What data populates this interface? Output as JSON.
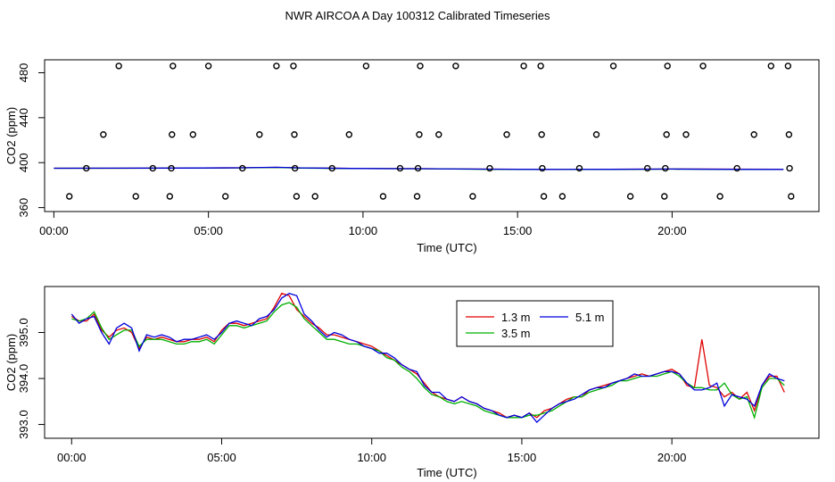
{
  "title": "NWR AIRCOA A  Day 100312  Calibrated Timeseries",
  "colors": {
    "h13": "#e00000",
    "h35": "#00b000",
    "h51": "#0000dd",
    "axis": "#000000"
  },
  "chart_data": [
    {
      "type": "scatter+line",
      "xlabel": "Time (UTC)",
      "ylabel": "CO2 (ppm)",
      "xlim": [
        -0.3,
        24.75
      ],
      "ylim": [
        356.5,
        491.5
      ],
      "xticks": [
        0,
        5,
        10,
        15,
        20
      ],
      "xtick_labels": [
        "00:00",
        "05:00",
        "10:00",
        "15:00",
        "20:00"
      ],
      "yticks": [
        360,
        400,
        440,
        480
      ],
      "ytick_labels": [
        "360",
        "400",
        "440",
        "480"
      ],
      "grid": false,
      "calibration_points": [
        {
          "x": 0.5,
          "y": 370
        },
        {
          "x": 1.05,
          "y": 395
        },
        {
          "x": 1.6,
          "y": 425
        },
        {
          "x": 2.1,
          "y": 486
        },
        {
          "x": 2.65,
          "y": 370
        },
        {
          "x": 3.2,
          "y": 395
        },
        {
          "x": 3.75,
          "y": 370
        },
        {
          "x": 3.8,
          "y": 395
        },
        {
          "x": 3.82,
          "y": 425
        },
        {
          "x": 3.85,
          "y": 486
        },
        {
          "x": 4.5,
          "y": 425
        },
        {
          "x": 5.0,
          "y": 486
        },
        {
          "x": 5.55,
          "y": 370
        },
        {
          "x": 6.1,
          "y": 395
        },
        {
          "x": 6.65,
          "y": 425
        },
        {
          "x": 7.2,
          "y": 486
        },
        {
          "x": 7.75,
          "y": 486
        },
        {
          "x": 7.78,
          "y": 425
        },
        {
          "x": 7.8,
          "y": 395
        },
        {
          "x": 7.85,
          "y": 370
        },
        {
          "x": 8.45,
          "y": 370
        },
        {
          "x": 9.0,
          "y": 395
        },
        {
          "x": 9.55,
          "y": 425
        },
        {
          "x": 10.1,
          "y": 486
        },
        {
          "x": 10.65,
          "y": 370
        },
        {
          "x": 11.2,
          "y": 395
        },
        {
          "x": 11.75,
          "y": 370
        },
        {
          "x": 11.78,
          "y": 395
        },
        {
          "x": 11.82,
          "y": 425
        },
        {
          "x": 11.85,
          "y": 486
        },
        {
          "x": 12.45,
          "y": 425
        },
        {
          "x": 13.0,
          "y": 486
        },
        {
          "x": 13.55,
          "y": 370
        },
        {
          "x": 14.1,
          "y": 395
        },
        {
          "x": 14.65,
          "y": 425
        },
        {
          "x": 15.2,
          "y": 486
        },
        {
          "x": 15.75,
          "y": 486
        },
        {
          "x": 15.78,
          "y": 425
        },
        {
          "x": 15.8,
          "y": 395
        },
        {
          "x": 15.85,
          "y": 370
        },
        {
          "x": 16.45,
          "y": 370
        },
        {
          "x": 17.0,
          "y": 395
        },
        {
          "x": 17.55,
          "y": 425
        },
        {
          "x": 18.1,
          "y": 486
        },
        {
          "x": 18.65,
          "y": 370
        },
        {
          "x": 19.2,
          "y": 395
        },
        {
          "x": 19.75,
          "y": 370
        },
        {
          "x": 19.78,
          "y": 395
        },
        {
          "x": 19.82,
          "y": 425
        },
        {
          "x": 19.85,
          "y": 486
        },
        {
          "x": 20.45,
          "y": 425
        },
        {
          "x": 21.0,
          "y": 486
        },
        {
          "x": 21.55,
          "y": 370
        },
        {
          "x": 22.1,
          "y": 395
        },
        {
          "x": 22.65,
          "y": 425
        },
        {
          "x": 23.2,
          "y": 486
        },
        {
          "x": 23.75,
          "y": 486
        },
        {
          "x": 23.78,
          "y": 425
        },
        {
          "x": 23.8,
          "y": 395
        },
        {
          "x": 23.85,
          "y": 370
        }
      ],
      "series": [
        {
          "name": "",
          "color_key": "h13",
          "x": [
            0,
            2,
            4,
            6,
            7.2,
            8,
            10,
            12,
            14,
            16,
            18,
            20,
            22,
            23.6
          ],
          "values": [
            395,
            395,
            395.2,
            395.4,
            395.8,
            395.3,
            394.8,
            394.6,
            394.2,
            394.0,
            394.1,
            394.3,
            394.2,
            394.1
          ]
        },
        {
          "name": "",
          "color_key": "h35",
          "x": [
            0,
            2,
            4,
            6,
            7.2,
            8,
            10,
            12,
            14,
            16,
            18,
            20,
            22,
            23.6
          ],
          "values": [
            395,
            395,
            395.1,
            395.3,
            395.7,
            395.2,
            394.7,
            394.5,
            394.1,
            393.9,
            394.0,
            394.2,
            394.0,
            393.9
          ]
        },
        {
          "name": "",
          "color_key": "h51",
          "x": [
            0,
            2,
            4,
            6,
            7.2,
            8,
            10,
            12,
            14,
            16,
            18,
            20,
            22,
            23.6
          ],
          "values": [
            395,
            395.1,
            395.2,
            395.4,
            395.9,
            395.3,
            394.8,
            394.6,
            394.2,
            394.0,
            394.1,
            394.3,
            394.1,
            394.0
          ]
        }
      ]
    },
    {
      "type": "line",
      "xlabel": "Time (UTC)",
      "ylabel": "CO2 (ppm)",
      "xlim": [
        -0.9,
        24.9
      ],
      "ylim": [
        392.7,
        396.0
      ],
      "xticks": [
        0,
        5,
        10,
        15,
        20
      ],
      "xtick_labels": [
        "00:00",
        "05:00",
        "10:00",
        "15:00",
        "20:00"
      ],
      "yticks": [
        393.0,
        394.0,
        395.0
      ],
      "ytick_labels": [
        "393.0",
        "394.0",
        "395.0"
      ],
      "grid": false,
      "legend_position": "top-center",
      "series": [
        {
          "name": "1.3 m",
          "color_key": "h13",
          "x": [
            0.0,
            0.25,
            0.5,
            0.75,
            1.0,
            1.25,
            1.5,
            1.75,
            2.0,
            2.25,
            2.5,
            2.75,
            3.0,
            3.25,
            3.5,
            3.75,
            4.0,
            4.25,
            4.5,
            4.75,
            5.0,
            5.25,
            5.5,
            5.75,
            6.0,
            6.25,
            6.5,
            6.75,
            7.0,
            7.25,
            7.5,
            7.75,
            8.0,
            8.25,
            8.5,
            8.75,
            9.0,
            9.25,
            9.5,
            9.75,
            10.0,
            10.25,
            10.5,
            10.75,
            11.0,
            11.25,
            11.5,
            11.75,
            12.0,
            12.25,
            12.5,
            12.75,
            13.0,
            13.25,
            13.5,
            13.75,
            14.0,
            14.25,
            14.5,
            14.75,
            15.0,
            15.25,
            15.5,
            15.75,
            16.0,
            16.25,
            16.5,
            16.75,
            17.0,
            17.25,
            17.5,
            17.75,
            18.0,
            18.25,
            18.5,
            18.75,
            19.0,
            19.25,
            19.5,
            19.75,
            20.0,
            20.25,
            20.5,
            20.75,
            21.0,
            21.25,
            21.5,
            21.75,
            22.0,
            22.25,
            22.5,
            22.75,
            23.0,
            23.25,
            23.5,
            23.75
          ],
          "values": [
            395.35,
            395.25,
            395.25,
            395.4,
            395.05,
            394.9,
            395.05,
            395.1,
            395.0,
            394.65,
            394.9,
            394.85,
            394.9,
            394.85,
            394.8,
            394.8,
            394.85,
            394.85,
            394.9,
            394.8,
            395.05,
            395.2,
            395.2,
            395.15,
            395.2,
            395.25,
            395.3,
            395.55,
            395.85,
            395.8,
            395.5,
            395.35,
            395.2,
            395.1,
            394.95,
            394.95,
            394.9,
            394.85,
            394.8,
            394.75,
            394.7,
            394.6,
            394.5,
            394.4,
            394.3,
            394.2,
            394.1,
            393.9,
            393.7,
            393.6,
            393.55,
            393.5,
            393.6,
            393.5,
            393.45,
            393.35,
            393.3,
            393.25,
            393.15,
            393.2,
            393.15,
            393.25,
            393.15,
            393.3,
            393.35,
            393.45,
            393.55,
            393.6,
            393.6,
            393.75,
            393.8,
            393.85,
            393.9,
            393.95,
            394.0,
            394.05,
            394.1,
            394.05,
            394.1,
            394.15,
            394.2,
            394.1,
            393.85,
            393.8,
            394.85,
            393.85,
            393.8,
            393.6,
            393.7,
            393.55,
            393.7,
            393.3,
            393.85,
            394.05,
            394.05,
            393.7
          ]
        },
        {
          "name": "3.5 m",
          "color_key": "h35",
          "x": [
            0.0,
            0.25,
            0.5,
            0.75,
            1.0,
            1.25,
            1.5,
            1.75,
            2.0,
            2.25,
            2.5,
            2.75,
            3.0,
            3.25,
            3.5,
            3.75,
            4.0,
            4.25,
            4.5,
            4.75,
            5.0,
            5.25,
            5.5,
            5.75,
            6.0,
            6.25,
            6.5,
            6.75,
            7.0,
            7.25,
            7.5,
            7.75,
            8.0,
            8.25,
            8.5,
            8.75,
            9.0,
            9.25,
            9.5,
            9.75,
            10.0,
            10.25,
            10.5,
            10.75,
            11.0,
            11.25,
            11.5,
            11.75,
            12.0,
            12.25,
            12.5,
            12.75,
            13.0,
            13.25,
            13.5,
            13.75,
            14.0,
            14.25,
            14.5,
            14.75,
            15.0,
            15.25,
            15.5,
            15.75,
            16.0,
            16.25,
            16.5,
            16.75,
            17.0,
            17.25,
            17.5,
            17.75,
            18.0,
            18.25,
            18.5,
            18.75,
            19.0,
            19.25,
            19.5,
            19.75,
            20.0,
            20.25,
            20.5,
            20.75,
            21.0,
            21.25,
            21.5,
            21.75,
            22.0,
            22.25,
            22.5,
            22.75,
            23.0,
            23.25,
            23.5,
            23.75
          ],
          "values": [
            395.3,
            395.25,
            395.3,
            395.45,
            395.1,
            394.85,
            394.95,
            395.05,
            395.05,
            394.7,
            394.85,
            394.85,
            394.85,
            394.8,
            394.75,
            394.75,
            394.8,
            394.8,
            394.85,
            394.75,
            394.95,
            395.15,
            395.15,
            395.1,
            395.15,
            395.2,
            395.25,
            395.45,
            395.6,
            395.65,
            395.55,
            395.3,
            395.15,
            395.0,
            394.85,
            394.85,
            394.8,
            394.75,
            394.75,
            394.7,
            394.65,
            394.6,
            394.45,
            394.4,
            394.25,
            394.15,
            394.0,
            393.8,
            393.65,
            393.6,
            393.5,
            393.45,
            393.5,
            393.45,
            393.4,
            393.3,
            393.25,
            393.2,
            393.15,
            393.15,
            393.15,
            393.2,
            393.2,
            393.25,
            393.3,
            393.4,
            393.5,
            393.6,
            393.6,
            393.7,
            393.75,
            393.8,
            393.85,
            393.95,
            393.95,
            394.0,
            394.05,
            394.05,
            394.05,
            394.1,
            394.15,
            394.05,
            393.9,
            393.8,
            393.8,
            393.75,
            393.75,
            393.9,
            393.65,
            393.55,
            393.6,
            393.15,
            393.8,
            394.0,
            394.0,
            393.85
          ]
        },
        {
          "name": "5.1 m",
          "color_key": "h51",
          "x": [
            0.0,
            0.25,
            0.5,
            0.75,
            1.0,
            1.25,
            1.5,
            1.75,
            2.0,
            2.25,
            2.5,
            2.75,
            3.0,
            3.25,
            3.5,
            3.75,
            4.0,
            4.25,
            4.5,
            4.75,
            5.0,
            5.25,
            5.5,
            5.75,
            6.0,
            6.25,
            6.5,
            6.75,
            7.0,
            7.25,
            7.5,
            7.75,
            8.0,
            8.25,
            8.5,
            8.75,
            9.0,
            9.25,
            9.5,
            9.75,
            10.0,
            10.25,
            10.5,
            10.75,
            11.0,
            11.25,
            11.5,
            11.75,
            12.0,
            12.25,
            12.5,
            12.75,
            13.0,
            13.25,
            13.5,
            13.75,
            14.0,
            14.25,
            14.5,
            14.75,
            15.0,
            15.25,
            15.5,
            15.75,
            16.0,
            16.25,
            16.5,
            16.75,
            17.0,
            17.25,
            17.5,
            17.75,
            18.0,
            18.25,
            18.5,
            18.75,
            19.0,
            19.25,
            19.5,
            19.75,
            20.0,
            20.25,
            20.5,
            20.75,
            21.0,
            21.25,
            21.5,
            21.75,
            22.0,
            22.25,
            22.5,
            22.75,
            23.0,
            23.25,
            23.5,
            23.75
          ],
          "values": [
            395.4,
            395.2,
            395.3,
            395.35,
            395.0,
            394.75,
            395.1,
            395.2,
            395.1,
            394.6,
            394.95,
            394.9,
            394.95,
            394.9,
            394.8,
            394.85,
            394.85,
            394.9,
            394.95,
            394.85,
            395.0,
            395.2,
            395.25,
            395.2,
            395.15,
            395.3,
            395.35,
            395.5,
            395.75,
            395.85,
            395.8,
            395.4,
            395.25,
            395.05,
            394.9,
            395.0,
            394.95,
            394.85,
            394.8,
            394.7,
            394.65,
            394.55,
            394.55,
            394.45,
            394.3,
            394.2,
            394.15,
            393.85,
            393.7,
            393.7,
            393.55,
            393.5,
            393.6,
            393.5,
            393.45,
            393.35,
            393.3,
            393.2,
            393.15,
            393.2,
            393.15,
            393.25,
            393.05,
            393.2,
            393.35,
            393.45,
            393.5,
            393.55,
            393.65,
            393.75,
            393.8,
            393.8,
            393.9,
            393.95,
            394.0,
            394.1,
            394.05,
            394.05,
            394.1,
            394.15,
            394.15,
            394.1,
            393.9,
            393.75,
            393.75,
            393.8,
            393.9,
            393.4,
            393.65,
            393.6,
            393.55,
            393.4,
            393.85,
            394.1,
            394.0,
            393.95
          ]
        }
      ]
    }
  ]
}
